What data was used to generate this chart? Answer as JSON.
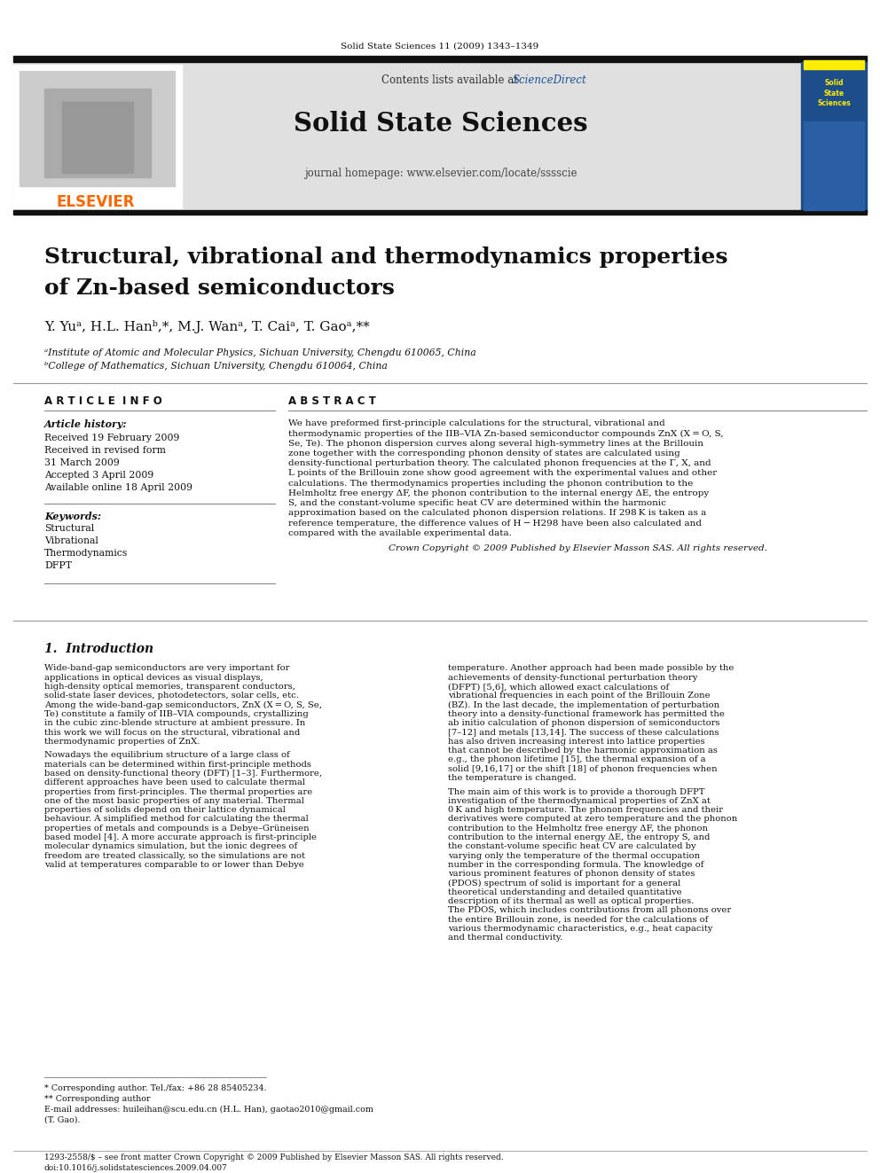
{
  "page_width": 9.92,
  "page_height": 13.23,
  "bg_color": "#ffffff",
  "header_journal_ref": "Solid State Sciences 11 (2009) 1343–1349",
  "header_bar_color": "#1a1a1a",
  "header_bg_color": "#e8e8e8",
  "journal_name": "Solid State Sciences",
  "contents_line": "Contents lists available at ScienceDirect",
  "sciencedirect_color": "#1a5296",
  "homepage_line": "journal homepage: www.elsevier.com/locate/sssscie",
  "elsevier_color": "#ff6600",
  "elsevier_text": "ELSEVIER",
  "article_title_line1": "Structural, vibrational and thermodynamics properties",
  "article_title_line2": "of Zn-based semiconductors",
  "authors": "Y. Yuᵃ, H.L. Hanᵇ,*, M.J. Wanᵃ, T. Caiᵃ, T. Gaoᵃ,**",
  "affil_a": "ᵃInstitute of Atomic and Molecular Physics, Sichuan University, Chengdu 610065, China",
  "affil_b": "ᵇCollege of Mathematics, Sichuan University, Chengdu 610064, China",
  "article_info_header": "A R T I C L E  I N F O",
  "abstract_header": "A B S T R A C T",
  "article_history_label": "Article history:",
  "received": "Received 19 February 2009",
  "received_revised": "Received in revised form",
  "march": "31 March 2009",
  "accepted": "Accepted 3 April 2009",
  "available": "Available online 18 April 2009",
  "keywords_label": "Keywords:",
  "keywords": [
    "Structural",
    "Vibrational",
    "Thermodynamics",
    "DFPT"
  ],
  "abstract_text": "We have preformed first-principle calculations for the structural, vibrational and thermodynamic properties of the IIB–VIA Zn-based semiconductor compounds ZnX (X = O, S, Se, Te). The phonon dispersion curves along several high-symmetry lines at the Brillouin zone together with the corresponding phonon density of states are calculated using density-functional perturbation theory. The calculated phonon frequencies at the Γ, X, and L points of the Brillouin zone show good agreement with the experimental values and other calculations. The thermodynamics properties including the phonon contribution to the Helmholtz free energy ΔF, the phonon contribution to the internal energy ΔE, the entropy S, and the constant-volume specific heat CV are determined within the harmonic approximation based on the calculated phonon dispersion relations. If 298 K is taken as a reference temperature, the difference values of H − H298 have been also calculated and compared with the available experimental data.",
  "copyright_line": "Crown Copyright © 2009 Published by Elsevier Masson SAS. All rights reserved.",
  "section1_title": "1.  Introduction",
  "intro_col1": "Wide-band-gap semiconductors are very important for applications in optical devices as visual displays, high-density optical memories, transparent conductors, solid-state laser devices, photodetectors, solar cells, etc. Among the wide-band-gap semiconductors, ZnX (X = O, S, Se, Te) constitute a family of IIB–VIA compounds, crystallizing in the cubic zinc-blende structure at ambient pressure. In this work we will focus on the structural, vibrational and thermodynamic properties of ZnX.\n\n    Nowadays the equilibrium structure of a large class of materials can be determined within first-principle methods based on density-functional theory (DFT) [1–3]. Furthermore, different approaches have been used to calculate thermal properties from first-principles. The thermal properties are one of the most basic properties of any material. Thermal properties of solids depend on their lattice dynamical behaviour. A simplified method for calculating the thermal properties of metals and compounds is a Debye–Grüneisen based model [4]. A more accurate approach is first-principle molecular dynamics simulation, but the ionic degrees of freedom are treated classically, so the simulations are not valid at temperatures comparable to or lower than Debye",
  "intro_col2": "temperature. Another approach had been made possible by the achievements of density-functional perturbation theory (DFPT) [5,6], which allowed exact calculations of vibrational frequencies in each point of the Brillouin Zone (BZ). In the last decade, the implementation of perturbation theory into a density-functional framework has permitted the ab initio calculation of phonon dispersion of semiconductors [7–12] and metals [13,14]. The success of these calculations has also driven increasing interest into lattice properties that cannot be described by the harmonic approximation as e.g., the phonon lifetime [15], the thermal expansion of a solid [9,16,17] or the shift [18] of phonon frequencies when the temperature is changed.\n\n    The main aim of this work is to provide a thorough DFPT investigation of the thermodynamical properties of ZnX at 0 K and high temperature. The phonon frequencies and their derivatives were computed at zero temperature and the phonon contribution to the Helmholtz free energy ΔF, the phonon contribution to the internal energy ΔE, the entropy S, and the constant-volume specific heat CV are calculated by varying only the temperature of the thermal occupation number in the corresponding formula. The knowledge of various prominent features of phonon density of states (PDOS) spectrum of solid is important for a general theoretical understanding and detailed quantitative description of its thermal as well as optical properties. The PDOS, which includes contributions from all phonons over the entire Brillouin zone, is needed for the calculations of various thermodynamic characteristics, e.g., heat capacity and thermal conductivity.",
  "footer_left": "1293-2558/$ – see front matter Crown Copyright © 2009 Published by Elsevier Masson SAS. All rights reserved.",
  "footer_doi": "doi:10.1016/j.solidstatesciences.2009.04.007",
  "footnote_star": "* Corresponding author. Tel./fax: +86 28 85405234.",
  "footnote_star2": "** Corresponding author",
  "footnote_email": "E-mail addresses: huileihan@scu.edu.cn (H.L. Han), gaotao2010@gmail.com",
  "footnote_email2": "(T. Gao).",
  "link_color": "#1a5296"
}
